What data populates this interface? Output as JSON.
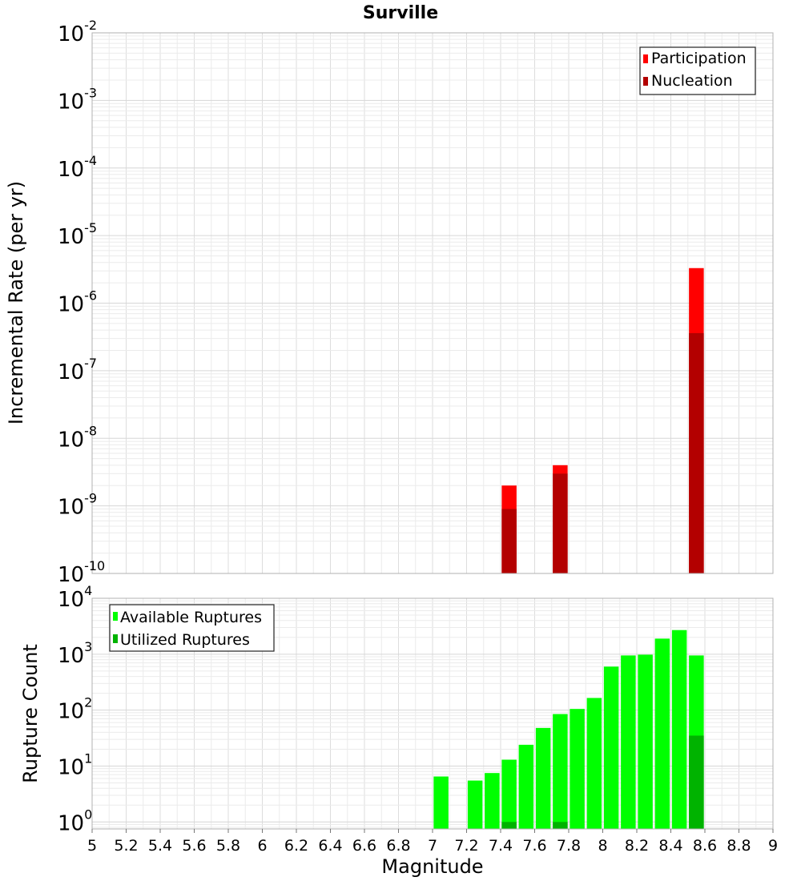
{
  "chart_data": [
    {
      "type": "bar",
      "title": "Surville",
      "xlabel": "",
      "ylabel": "Incremental Rate (per yr)",
      "yscale": "log",
      "xlim": [
        5,
        9
      ],
      "ylim": [
        1e-10,
        0.01
      ],
      "y_ticks": [
        {
          "mantissa": "10",
          "exp": "-10"
        },
        {
          "mantissa": "10",
          "exp": "-9"
        },
        {
          "mantissa": "10",
          "exp": "-8"
        },
        {
          "mantissa": "10",
          "exp": "-7"
        },
        {
          "mantissa": "10",
          "exp": "-6"
        },
        {
          "mantissa": "10",
          "exp": "-5"
        },
        {
          "mantissa": "10",
          "exp": "-4"
        },
        {
          "mantissa": "10",
          "exp": "-3"
        },
        {
          "mantissa": "10",
          "exp": "-2"
        }
      ],
      "grid": true,
      "legend_position": "top-right",
      "series": [
        {
          "name": "Participation",
          "color": "#ff0000",
          "points": [
            {
              "x": 7.45,
              "y": 2e-09
            },
            {
              "x": 7.75,
              "y": 4e-09
            },
            {
              "x": 8.55,
              "y": 3.3e-06
            }
          ]
        },
        {
          "name": "Nucleation",
          "color": "#b30000",
          "points": [
            {
              "x": 7.45,
              "y": 9e-10
            },
            {
              "x": 7.75,
              "y": 3e-09
            },
            {
              "x": 8.55,
              "y": 3.6e-07
            }
          ]
        }
      ]
    },
    {
      "type": "bar",
      "title": "",
      "xlabel": "Magnitude",
      "ylabel": "Rupture Count",
      "yscale": "log",
      "xlim": [
        5,
        9
      ],
      "ylim": [
        0.75,
        10000
      ],
      "x_ticks": [
        "5",
        "5.2",
        "5.4",
        "5.6",
        "5.8",
        "6",
        "6.2",
        "6.4",
        "6.6",
        "6.8",
        "7",
        "7.2",
        "7.4",
        "7.6",
        "7.8",
        "8",
        "8.2",
        "8.4",
        "8.6",
        "8.8",
        "9"
      ],
      "y_ticks": [
        {
          "mantissa": "10",
          "exp": "0"
        },
        {
          "mantissa": "10",
          "exp": "1"
        },
        {
          "mantissa": "10",
          "exp": "2"
        },
        {
          "mantissa": "10",
          "exp": "3"
        },
        {
          "mantissa": "10",
          "exp": "4"
        }
      ],
      "grid": true,
      "legend_position": "top-left",
      "series": [
        {
          "name": "Available Ruptures",
          "color": "#00ff00",
          "points": [
            {
              "x": 7.05,
              "y": 6.5
            },
            {
              "x": 7.25,
              "y": 5.5
            },
            {
              "x": 7.35,
              "y": 7.5
            },
            {
              "x": 7.45,
              "y": 13
            },
            {
              "x": 7.55,
              "y": 24
            },
            {
              "x": 7.65,
              "y": 48
            },
            {
              "x": 7.75,
              "y": 85
            },
            {
              "x": 7.85,
              "y": 105
            },
            {
              "x": 7.95,
              "y": 165
            },
            {
              "x": 8.05,
              "y": 600
            },
            {
              "x": 8.15,
              "y": 950
            },
            {
              "x": 8.25,
              "y": 980
            },
            {
              "x": 8.35,
              "y": 1900
            },
            {
              "x": 8.45,
              "y": 2700
            },
            {
              "x": 8.55,
              "y": 950
            }
          ]
        },
        {
          "name": "Utilized Ruptures",
          "color": "#00b300",
          "points": [
            {
              "x": 7.45,
              "y": 1
            },
            {
              "x": 7.75,
              "y": 1
            },
            {
              "x": 8.55,
              "y": 35
            }
          ]
        }
      ]
    }
  ]
}
